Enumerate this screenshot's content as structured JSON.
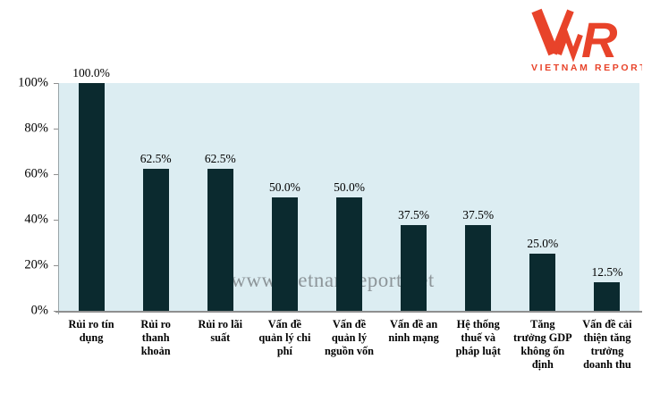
{
  "logo": {
    "letter_v": "V",
    "letter_n": "N",
    "letter_r": "R",
    "text": "VNR",
    "subtitle": "VIETNAM REPORT",
    "color": "#e8432a"
  },
  "watermark": {
    "text": "www.vietnamreport.net"
  },
  "chart_data": {
    "type": "bar",
    "title": "",
    "xlabel": "",
    "ylabel": "",
    "categories": [
      "Rủi ro tín\ndụng",
      "Rủi ro\nthanh\nkhoản",
      "Rủi ro lãi\nsuất",
      "Vấn đề\nquản lý chi\nphí",
      "Vấn đề\nquản lý\nnguồn vốn",
      "Vấn đề an\nninh mạng",
      "Hệ thống\nthuế và\npháp luật",
      "Tăng\ntrưởng GDP\nkhông ổn\nđịnh",
      "Vấn đề cải\nthiện tăng\ntrưởng\ndoanh thu"
    ],
    "values": [
      100.0,
      62.5,
      62.5,
      50.0,
      50.0,
      37.5,
      37.5,
      25.0,
      12.5
    ],
    "value_labels": [
      "100.0%",
      "62.5%",
      "62.5%",
      "50.0%",
      "50.0%",
      "37.5%",
      "37.5%",
      "25.0%",
      "12.5%"
    ],
    "y_tick_labels": [
      "100%",
      "80%",
      "60%",
      "40%",
      "20%",
      "0%"
    ],
    "y_tick_values": [
      100,
      80,
      60,
      40,
      20,
      0
    ],
    "ylim": [
      0,
      100
    ],
    "grid": false,
    "legend": "none",
    "colors": {
      "bar": "#0b2a2f",
      "plot_background": "#dcedf2",
      "axis": "#8f8f8f"
    }
  }
}
